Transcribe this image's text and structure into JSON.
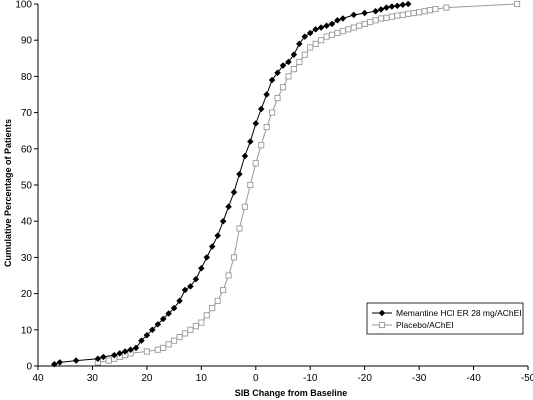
{
  "chart_data": {
    "type": "line",
    "xlabel": "SIB Change from Baseline",
    "ylabel": "Cumulative Percentage of Patients",
    "xlim": [
      40,
      -50
    ],
    "ylim": [
      0,
      100
    ],
    "x_ticks": [
      40,
      30,
      20,
      10,
      0,
      -10,
      -20,
      -30,
      -40,
      -50
    ],
    "x_tick_labels": [
      "40",
      "30",
      "20",
      "10",
      "0",
      "-10",
      "-20",
      "-30",
      "-40",
      "-50"
    ],
    "y_ticks": [
      0,
      10,
      20,
      30,
      40,
      50,
      60,
      70,
      80,
      90,
      100
    ],
    "y_tick_labels": [
      "0",
      "10",
      "20",
      "30",
      "40",
      "50",
      "60",
      "70",
      "80",
      "90",
      "100"
    ],
    "grid": false,
    "legend_position": "bottom-right",
    "series": [
      {
        "name": "Memantine HCl ER 28 mg/AChEI",
        "marker": "filled-diamond",
        "color": "#000000",
        "x": [
          37,
          36,
          33,
          29,
          28,
          26,
          25,
          24,
          23,
          22,
          21,
          20,
          19,
          18,
          17,
          16,
          15,
          14,
          13,
          12,
          11,
          10,
          9,
          8,
          7,
          6,
          5,
          4,
          3,
          2,
          1,
          0,
          -1,
          -2,
          -3,
          -4,
          -5,
          -6,
          -7,
          -8,
          -9,
          -10,
          -11,
          -12,
          -13,
          -14,
          -15,
          -16,
          -18,
          -20,
          -22,
          -23,
          -24,
          -25,
          -26,
          -27,
          -28
        ],
        "y": [
          0.5,
          1,
          1.5,
          2,
          2.5,
          3,
          3.5,
          4,
          4.5,
          5,
          7,
          8.5,
          10,
          11.5,
          13,
          14.5,
          16,
          18,
          21,
          22,
          24,
          27,
          30,
          33,
          36,
          40,
          44,
          48,
          53,
          58,
          62,
          67,
          71,
          75,
          79,
          81,
          83,
          84,
          86,
          89,
          91,
          92,
          93,
          93.5,
          94,
          94.5,
          95.5,
          96,
          97,
          97.5,
          98,
          98.5,
          99,
          99.3,
          99.5,
          99.8,
          100
        ]
      },
      {
        "name": "Placebo/AChEI",
        "marker": "open-square",
        "color": "#999999",
        "x": [
          29,
          27,
          26,
          25,
          24,
          23,
          20,
          18,
          17,
          16,
          15,
          14,
          13,
          12,
          11,
          10,
          9,
          8,
          7,
          6,
          5,
          4,
          3,
          2,
          1,
          0,
          -1,
          -2,
          -3,
          -4,
          -5,
          -6,
          -7,
          -8,
          -9,
          -10,
          -11,
          -12,
          -13,
          -14,
          -15,
          -16,
          -17,
          -18,
          -19,
          -20,
          -21,
          -22,
          -23,
          -24,
          -25,
          -26,
          -27,
          -28,
          -29,
          -30,
          -31,
          -32,
          -33,
          -35,
          -48
        ],
        "y": [
          1,
          1.5,
          2,
          2.5,
          3,
          3.5,
          4,
          4.5,
          5,
          6,
          7,
          8,
          9,
          10,
          11,
          12,
          14,
          16,
          18,
          21,
          25,
          30,
          38,
          44,
          50,
          56,
          61,
          66,
          70,
          74,
          77,
          80,
          82,
          84,
          86,
          88,
          89,
          90,
          91,
          91.5,
          92,
          92.5,
          93,
          93.5,
          94,
          94.5,
          95,
          95.5,
          96,
          96.2,
          96.5,
          96.8,
          97,
          97.3,
          97.5,
          97.7,
          98,
          98.3,
          98.6,
          99,
          100
        ]
      }
    ]
  }
}
